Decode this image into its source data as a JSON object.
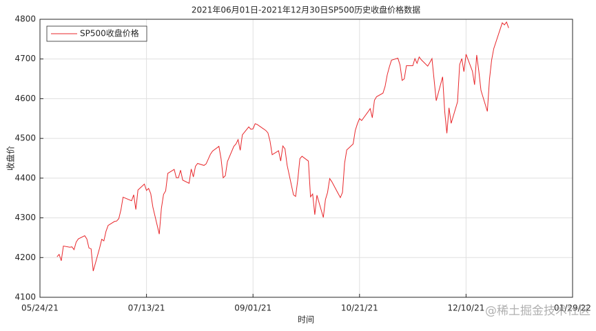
{
  "chart_data": {
    "type": "line",
    "title": "2021年06月01日-2021年12月30日SP500历史收盘价格数据",
    "x_label": "时间",
    "y_label": "收盘价",
    "watermark": "@稀土掘金技术社区",
    "legend": "northwest",
    "grid": true,
    "xlim": [
      "2021-05-24",
      "2022-01-29"
    ],
    "xticks": [
      {
        "value": "2021-05-24",
        "label": "05/24/21"
      },
      {
        "value": "2021-07-13",
        "label": "07/13/21"
      },
      {
        "value": "2021-09-01",
        "label": "09/01/21"
      },
      {
        "value": "2021-10-21",
        "label": "10/21/21"
      },
      {
        "value": "2021-12-10",
        "label": "12/10/21"
      },
      {
        "value": "2022-01-29",
        "label": "01/29/22"
      }
    ],
    "ylim": [
      4100,
      4800
    ],
    "yticks": [
      4100,
      4200,
      4300,
      4400,
      4500,
      4600,
      4700,
      4800
    ],
    "x": [
      "2021-06-01",
      "2021-06-02",
      "2021-06-03",
      "2021-06-04",
      "2021-06-07",
      "2021-06-08",
      "2021-06-09",
      "2021-06-10",
      "2021-06-11",
      "2021-06-14",
      "2021-06-15",
      "2021-06-16",
      "2021-06-17",
      "2021-06-18",
      "2021-06-21",
      "2021-06-22",
      "2021-06-23",
      "2021-06-24",
      "2021-06-25",
      "2021-06-28",
      "2021-06-29",
      "2021-06-30",
      "2021-07-01",
      "2021-07-02",
      "2021-07-06",
      "2021-07-07",
      "2021-07-08",
      "2021-07-09",
      "2021-07-12",
      "2021-07-13",
      "2021-07-14",
      "2021-07-15",
      "2021-07-16",
      "2021-07-19",
      "2021-07-20",
      "2021-07-21",
      "2021-07-22",
      "2021-07-23",
      "2021-07-26",
      "2021-07-27",
      "2021-07-28",
      "2021-07-29",
      "2021-07-30",
      "2021-08-02",
      "2021-08-03",
      "2021-08-04",
      "2021-08-05",
      "2021-08-06",
      "2021-08-09",
      "2021-08-10",
      "2021-08-11",
      "2021-08-12",
      "2021-08-13",
      "2021-08-16",
      "2021-08-17",
      "2021-08-18",
      "2021-08-19",
      "2021-08-20",
      "2021-08-23",
      "2021-08-24",
      "2021-08-25",
      "2021-08-26",
      "2021-08-27",
      "2021-08-30",
      "2021-08-31",
      "2021-09-01",
      "2021-09-02",
      "2021-09-03",
      "2021-09-07",
      "2021-09-08",
      "2021-09-09",
      "2021-09-10",
      "2021-09-13",
      "2021-09-14",
      "2021-09-15",
      "2021-09-16",
      "2021-09-17",
      "2021-09-20",
      "2021-09-21",
      "2021-09-22",
      "2021-09-23",
      "2021-09-24",
      "2021-09-27",
      "2021-09-28",
      "2021-09-29",
      "2021-09-30",
      "2021-10-01",
      "2021-10-04",
      "2021-10-05",
      "2021-10-06",
      "2021-10-07",
      "2021-10-08",
      "2021-10-11",
      "2021-10-12",
      "2021-10-13",
      "2021-10-14",
      "2021-10-15",
      "2021-10-18",
      "2021-10-19",
      "2021-10-20",
      "2021-10-21",
      "2021-10-22",
      "2021-10-25",
      "2021-10-26",
      "2021-10-27",
      "2021-10-28",
      "2021-10-29",
      "2021-11-01",
      "2021-11-02",
      "2021-11-03",
      "2021-11-04",
      "2021-11-05",
      "2021-11-08",
      "2021-11-09",
      "2021-11-10",
      "2021-11-11",
      "2021-11-12",
      "2021-11-15",
      "2021-11-16",
      "2021-11-17",
      "2021-11-18",
      "2021-11-19",
      "2021-11-22",
      "2021-11-23",
      "2021-11-24",
      "2021-11-26",
      "2021-11-29",
      "2021-11-30",
      "2021-12-01",
      "2021-12-02",
      "2021-12-03",
      "2021-12-06",
      "2021-12-07",
      "2021-12-08",
      "2021-12-09",
      "2021-12-10",
      "2021-12-13",
      "2021-12-14",
      "2021-12-15",
      "2021-12-16",
      "2021-12-17",
      "2021-12-20",
      "2021-12-21",
      "2021-12-22",
      "2021-12-23",
      "2021-12-27",
      "2021-12-28",
      "2021-12-29",
      "2021-12-30"
    ],
    "series": [
      {
        "name": "SP500收盘价格",
        "color": "#e8262a",
        "values": [
          4202,
          4208,
          4192,
          4229,
          4226,
          4227,
          4220,
          4239,
          4247,
          4255,
          4247,
          4224,
          4222,
          4166,
          4224,
          4246,
          4242,
          4266,
          4281,
          4291,
          4292,
          4298,
          4320,
          4352,
          4343,
          4358,
          4321,
          4370,
          4385,
          4369,
          4374,
          4361,
          4327,
          4259,
          4324,
          4359,
          4368,
          4412,
          4422,
          4401,
          4401,
          4420,
          4395,
          4387,
          4423,
          4403,
          4430,
          4437,
          4432,
          4436,
          4448,
          4460,
          4468,
          4480,
          4449,
          4401,
          4406,
          4442,
          4480,
          4486,
          4497,
          4470,
          4509,
          4529,
          4523,
          4524,
          4537,
          4535,
          4520,
          4514,
          4493,
          4459,
          4469,
          4443,
          4481,
          4474,
          4433,
          4358,
          4354,
          4395,
          4449,
          4455,
          4443,
          4353,
          4360,
          4308,
          4357,
          4301,
          4346,
          4364,
          4399,
          4391,
          4361,
          4351,
          4364,
          4438,
          4471,
          4486,
          4520,
          4537,
          4550,
          4545,
          4567,
          4575,
          4552,
          4596,
          4605,
          4614,
          4631,
          4660,
          4680,
          4697,
          4702,
          4685,
          4646,
          4650,
          4683,
          4683,
          4701,
          4689,
          4705,
          4698,
          4682,
          4691,
          4701,
          4595,
          4655,
          4567,
          4513,
          4577,
          4538,
          4592,
          4686,
          4701,
          4668,
          4712,
          4669,
          4635,
          4710,
          4669,
          4621,
          4568,
          4649,
          4697,
          4726,
          4791,
          4786,
          4793,
          4778
        ]
      }
    ]
  }
}
